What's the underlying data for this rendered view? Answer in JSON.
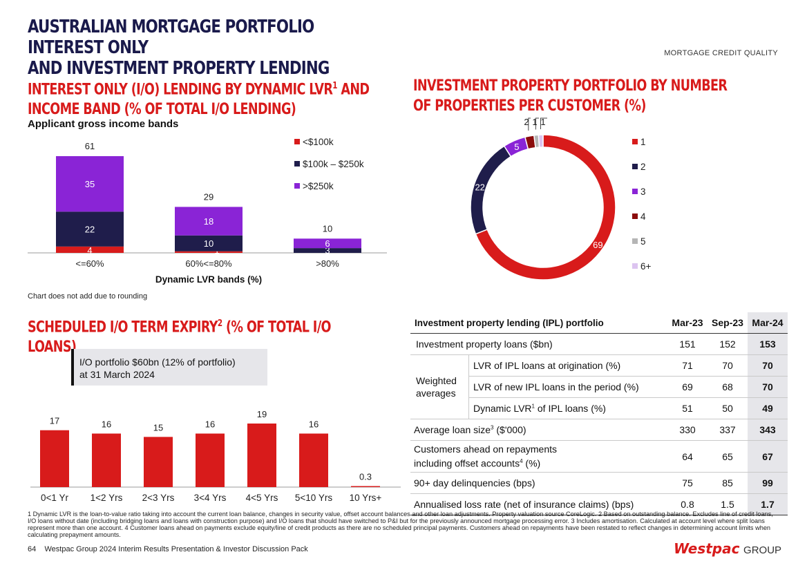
{
  "header": {
    "title_line1": "AUSTRALIAN MORTGAGE PORTFOLIO INTEREST ONLY",
    "title_line2": "AND INVESTMENT PROPERTY LENDING",
    "section_tag": "MORTGAGE CREDIT QUALITY"
  },
  "io_lvr": {
    "title_a": "INTEREST ONLY (I/O) LENDING BY DYNAMIC LVR",
    "title_sup": "1",
    "title_b": " AND",
    "title_line2": "INCOME BAND (% OF TOTAL I/O LENDING)",
    "subtitle": "Applicant gross income bands",
    "note": "Chart does not add due to rounding"
  },
  "ipp": {
    "title_line1": "INVESTMENT PROPERTY PORTFOLIO BY NUMBER",
    "title_line2": "OF PROPERTIES PER CUSTOMER (%)"
  },
  "expiry": {
    "title_a": "SCHEDULED I/O TERM EXPIRY",
    "title_sup": "2",
    "title_b": " (% OF TOTAL I/O LOANS)",
    "box_line1": "I/O portfolio $60bn (12% of portfolio)",
    "box_line2": "at 31 March 2024"
  },
  "chart_data": [
    {
      "type": "bar",
      "stacked": true,
      "categories": [
        "<=60%",
        "60%<=80%",
        ">80%"
      ],
      "totals": [
        61,
        29,
        10
      ],
      "series": [
        {
          "name": "<$100k",
          "values": [
            4,
            1,
            null
          ],
          "color": "#d81b1b"
        },
        {
          "name": "$100k – $250k",
          "values": [
            22,
            10,
            3
          ],
          "color": "#1f1d4b"
        },
        {
          "name": ">$250k",
          "values": [
            35,
            18,
            6
          ],
          "color": "#8a24d6"
        }
      ],
      "xlabel": "Dynamic LVR bands (%)",
      "legend": "right"
    },
    {
      "type": "pie",
      "donut": true,
      "labels": [
        "1",
        "2",
        "3",
        "4",
        "5",
        "6+"
      ],
      "values": [
        69,
        22,
        5,
        2,
        1,
        1
      ],
      "colors": [
        "#d81b1b",
        "#1f1d4b",
        "#8a24d6",
        "#8b0c0c",
        "#b5b5b5",
        "#dcc4f0"
      ],
      "legend": "right"
    },
    {
      "type": "bar",
      "categories": [
        "0<1 Yr",
        "1<2 Yrs",
        "2<3 Yrs",
        "3<4 Yrs",
        "4<5 Yrs",
        "5<10 Yrs",
        "10 Yrs+"
      ],
      "values": [
        17,
        16,
        15,
        16,
        19,
        16,
        0.3
      ],
      "color": "#d81b1b"
    },
    {
      "type": "table",
      "title": "Investment property lending (IPL) portfolio",
      "columns": [
        "Mar-23",
        "Sep-23",
        "Mar-24"
      ],
      "group_label_line1": "Weighted",
      "group_label_line2": "averages",
      "rows": [
        {
          "label": "Investment property loans ($bn)",
          "values": [
            "151",
            "152",
            "153"
          ]
        },
        {
          "label_a": "LVR of IPL loans at origination (%)",
          "values": [
            "71",
            "70",
            "70"
          ]
        },
        {
          "label_a": "LVR of new IPL loans in the period (%)",
          "values": [
            "69",
            "68",
            "70"
          ]
        },
        {
          "label_a": "Dynamic LVR",
          "sup": "1",
          "label_b": " of IPL loans (%)",
          "values": [
            "51",
            "50",
            "49"
          ]
        },
        {
          "label_a": "Average loan size",
          "sup": "3",
          "label_b": " ($'000)",
          "values": [
            "330",
            "337",
            "343"
          ]
        },
        {
          "label_a": "Customers ahead on repayments",
          "label_line2_a": "including offset accounts",
          "sup": "4",
          "label_line2_b": " (%)",
          "values": [
            "64",
            "65",
            "67"
          ]
        },
        {
          "label": "90+ day delinquencies (bps)",
          "values": [
            "75",
            "85",
            "99"
          ]
        },
        {
          "label": "Annualised loss rate (net of insurance claims) (bps)",
          "values": [
            "0.8",
            "1.5",
            "1.7"
          ]
        }
      ]
    }
  ],
  "footnotes": "1 Dynamic LVR is the loan-to-value ratio taking into account the current loan balance, changes in security value, offset account balances and other loan adjustments. Property valuation source CoreLogic. 2 Based on outstanding balance. Excludes line of credit loans, I/O loans without date (including bridging loans and loans with construction purpose) and I/O loans that should have switched to P&I but for the previously announced mortgage processing error. 3 Includes amortisation. Calculated at account level where split loans represent more than one account. 4 Customer loans ahead on payments exclude equity/line of credit products as there are no scheduled principal payments. Customers ahead on repayments have been restated to reflect changes in determining account limits when calculating prepayment amounts.",
  "footer": {
    "page": "64",
    "text": "Westpac Group 2024 Interim Results Presentation & Investor Discussion Pack",
    "logo_a": "Westpac",
    "logo_b": "GROUP"
  }
}
